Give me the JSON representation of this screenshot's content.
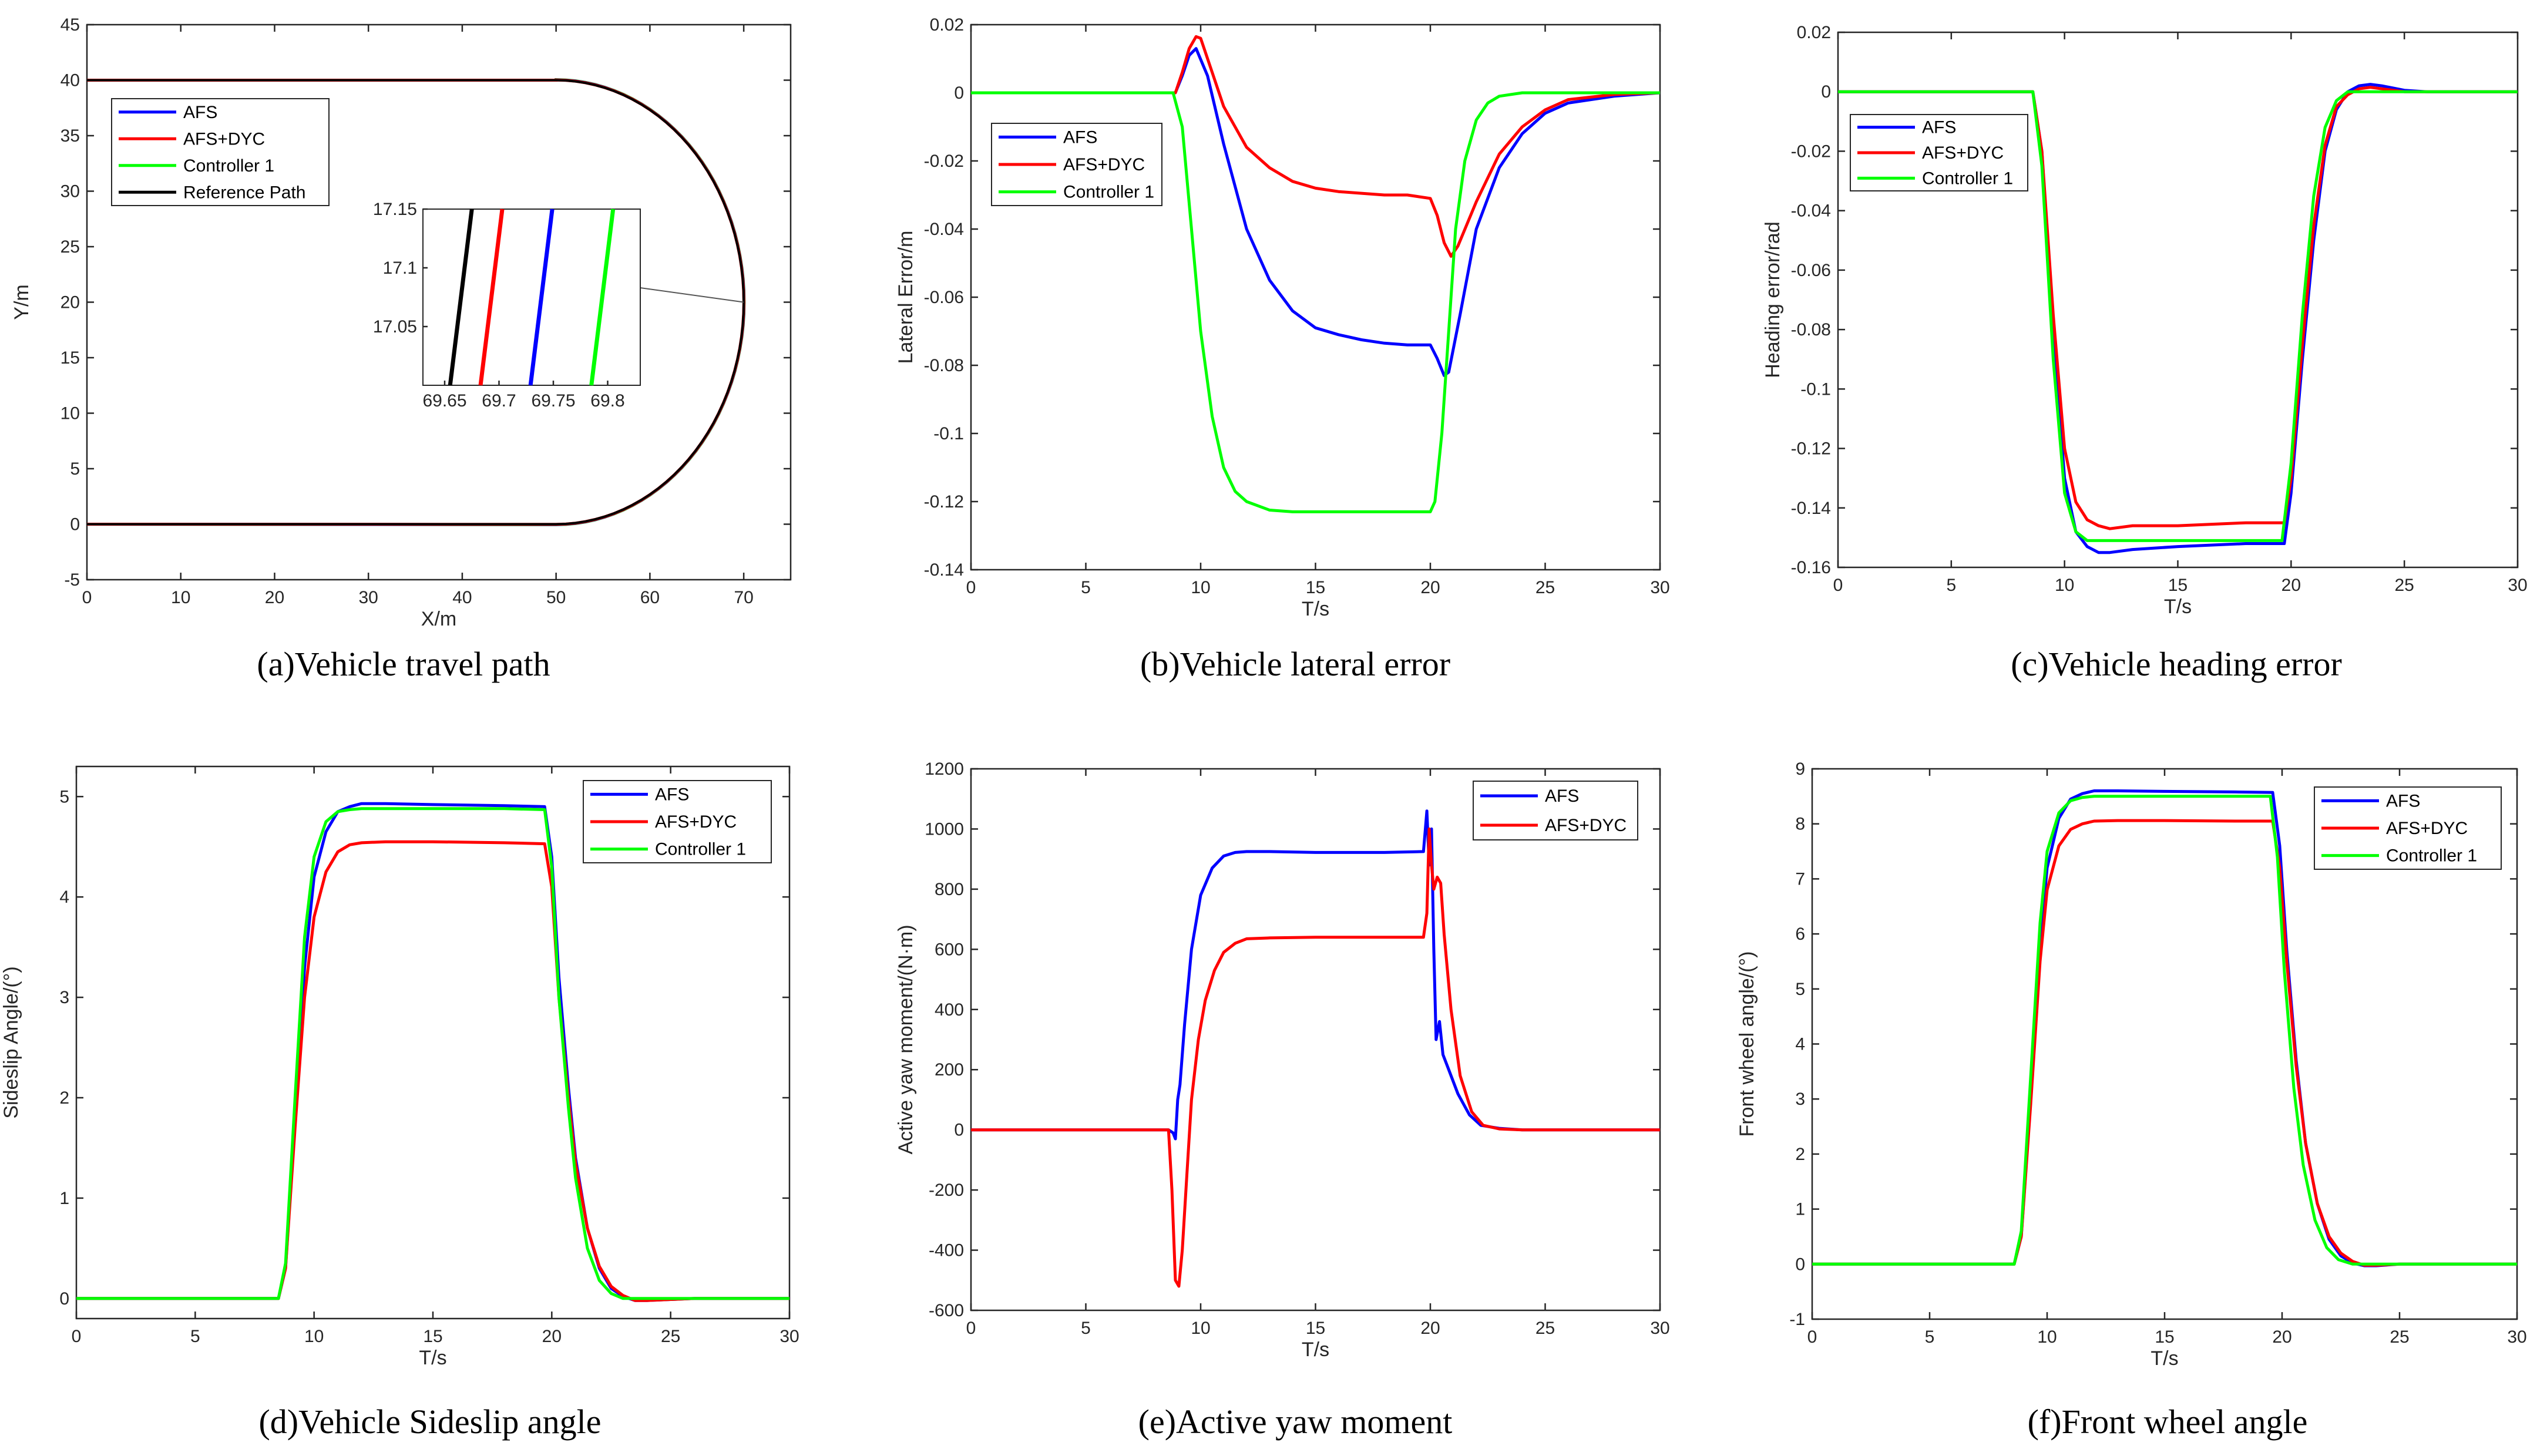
{
  "colors": {
    "AFS": "#0000ff",
    "AFS+DYC": "#ff0000",
    "Controller 1": "#00ff00",
    "Reference Path": "#000000"
  },
  "chart_data": [
    {
      "id": "a",
      "type": "line",
      "caption": "(a)Vehicle travel path",
      "xlabel": "X/m",
      "ylabel": "Y/m",
      "xlim": [
        0,
        75
      ],
      "ylim": [
        -5,
        45
      ],
      "xticks": [
        0,
        10,
        20,
        30,
        40,
        50,
        60,
        70
      ],
      "yticks": [
        -5,
        0,
        5,
        10,
        15,
        20,
        25,
        30,
        35,
        40,
        45
      ],
      "legend_position": "top-left",
      "series": [
        {
          "name": "AFS",
          "shape": "path",
          "offset": 0.03
        },
        {
          "name": "AFS+DYC",
          "shape": "path",
          "offset": 0.015
        },
        {
          "name": "Controller 1",
          "shape": "path",
          "offset": 0.05
        },
        {
          "name": "Reference Path",
          "shape": "path",
          "offset": 0
        }
      ],
      "inset": {
        "xlim": [
          69.63,
          69.83
        ],
        "ylim": [
          17.0,
          17.15
        ],
        "xticks": [
          69.65,
          69.7,
          69.75,
          69.8
        ],
        "yticks": [
          17.05,
          17.1,
          17.15
        ],
        "lines": [
          {
            "name": "Reference Path",
            "x": [
              69.655,
              69.675
            ]
          },
          {
            "name": "AFS+DYC",
            "x": [
              69.683,
              69.703
            ]
          },
          {
            "name": "AFS",
            "x": [
              69.729,
              69.749
            ]
          },
          {
            "name": "Controller 1",
            "x": [
              69.785,
              69.805
            ]
          }
        ]
      }
    },
    {
      "id": "b",
      "type": "line",
      "caption": "(b)Vehicle lateral error",
      "xlabel": "T/s",
      "ylabel": "Lateral Error/m",
      "xlim": [
        0,
        30
      ],
      "ylim": [
        -0.14,
        0.02
      ],
      "xticks": [
        0,
        5,
        10,
        15,
        20,
        25,
        30
      ],
      "yticks": [
        -0.14,
        -0.12,
        -0.1,
        -0.08,
        -0.06,
        -0.04,
        -0.02,
        0,
        0.02
      ],
      "legend_position": "top-left",
      "series": [
        {
          "name": "AFS",
          "x": [
            0,
            8.9,
            9.2,
            9.5,
            9.8,
            10.3,
            11,
            12,
            13,
            14,
            15,
            16,
            17,
            18,
            19,
            20,
            20.3,
            20.6,
            20.8,
            21.3,
            22,
            23,
            24,
            25,
            26,
            28,
            30
          ],
          "y": [
            0,
            0,
            0.005,
            0.011,
            0.013,
            0.005,
            -0.015,
            -0.04,
            -0.055,
            -0.064,
            -0.069,
            -0.071,
            -0.0725,
            -0.0735,
            -0.074,
            -0.074,
            -0.078,
            -0.083,
            -0.082,
            -0.065,
            -0.04,
            -0.022,
            -0.012,
            -0.006,
            -0.003,
            -0.001,
            0
          ]
        },
        {
          "name": "AFS+DYC",
          "x": [
            0,
            8.9,
            9.2,
            9.5,
            9.8,
            10,
            10.5,
            11,
            12,
            13,
            14,
            15,
            16,
            17,
            18,
            19,
            20,
            20.3,
            20.6,
            20.9,
            21.2,
            22,
            23,
            24,
            25,
            26,
            28,
            30
          ],
          "y": [
            0,
            0,
            0.006,
            0.013,
            0.0165,
            0.016,
            0.006,
            -0.004,
            -0.016,
            -0.022,
            -0.026,
            -0.028,
            -0.029,
            -0.0295,
            -0.03,
            -0.03,
            -0.031,
            -0.036,
            -0.044,
            -0.048,
            -0.045,
            -0.032,
            -0.018,
            -0.01,
            -0.005,
            -0.002,
            -0.0005,
            0
          ]
        },
        {
          "name": "Controller 1",
          "x": [
            0,
            8.8,
            9.2,
            9.6,
            10,
            10.5,
            11,
            11.5,
            12,
            13,
            14,
            16,
            18,
            19,
            20,
            20.2,
            20.5,
            20.8,
            21.1,
            21.5,
            22,
            22.5,
            23,
            24,
            26,
            30
          ],
          "y": [
            0,
            0,
            -0.01,
            -0.04,
            -0.07,
            -0.095,
            -0.11,
            -0.117,
            -0.12,
            -0.1225,
            -0.123,
            -0.123,
            -0.123,
            -0.123,
            -0.123,
            -0.12,
            -0.1,
            -0.07,
            -0.04,
            -0.02,
            -0.008,
            -0.003,
            -0.001,
            0,
            0,
            0
          ]
        }
      ]
    },
    {
      "id": "c",
      "type": "line",
      "caption": "(c)Vehicle heading error",
      "xlabel": "T/s",
      "ylabel": "Heading error/rad",
      "xlim": [
        0,
        30
      ],
      "ylim": [
        -0.16,
        0.02
      ],
      "xticks": [
        0,
        5,
        10,
        15,
        20,
        25,
        30
      ],
      "yticks": [
        -0.16,
        -0.14,
        -0.12,
        -0.1,
        -0.08,
        -0.06,
        -0.04,
        -0.02,
        0,
        0.02
      ],
      "legend_position": "top-left",
      "series": [
        {
          "name": "AFS",
          "x": [
            0,
            8.6,
            9,
            9.5,
            10,
            10.5,
            11,
            11.5,
            12,
            13,
            15,
            18,
            19.7,
            20,
            20.5,
            21,
            21.5,
            22,
            22.5,
            23,
            23.5,
            24,
            25,
            26,
            30
          ],
          "y": [
            0,
            0,
            -0.02,
            -0.08,
            -0.13,
            -0.148,
            -0.153,
            -0.155,
            -0.155,
            -0.154,
            -0.153,
            -0.152,
            -0.152,
            -0.135,
            -0.09,
            -0.05,
            -0.02,
            -0.006,
            0.0,
            0.002,
            0.0025,
            0.002,
            0.0005,
            0,
            0
          ]
        },
        {
          "name": "AFS+DYC",
          "x": [
            0,
            8.6,
            9,
            9.5,
            10,
            10.5,
            11,
            11.5,
            12,
            13,
            15,
            18,
            19.7,
            20,
            20.5,
            21,
            21.5,
            22,
            22.5,
            23,
            23.5,
            24,
            25,
            30
          ],
          "y": [
            0,
            0,
            -0.02,
            -0.075,
            -0.12,
            -0.138,
            -0.144,
            -0.146,
            -0.147,
            -0.146,
            -0.146,
            -0.145,
            -0.145,
            -0.13,
            -0.085,
            -0.045,
            -0.018,
            -0.005,
            -0.001,
            0.001,
            0.0015,
            0.001,
            0,
            0
          ]
        },
        {
          "name": "Controller 1",
          "x": [
            0,
            8.6,
            9,
            9.5,
            10,
            10.5,
            11,
            11.5,
            12,
            15,
            18,
            19.6,
            20,
            20.5,
            21,
            21.5,
            22,
            22.5,
            23,
            24,
            30
          ],
          "y": [
            0,
            0,
            -0.025,
            -0.09,
            -0.135,
            -0.148,
            -0.151,
            -0.151,
            -0.151,
            -0.151,
            -0.151,
            -0.151,
            -0.125,
            -0.075,
            -0.035,
            -0.012,
            -0.003,
            0,
            0,
            0,
            0
          ]
        }
      ]
    },
    {
      "id": "d",
      "type": "line",
      "caption": "(d)Vehicle Sideslip angle",
      "xlabel": "T/s",
      "ylabel": "Sideslip Angle/(°)",
      "xlim": [
        0,
        30
      ],
      "ylim": [
        -0.2,
        5.3
      ],
      "xticks": [
        0,
        5,
        10,
        15,
        20,
        25,
        30
      ],
      "yticks": [
        0,
        1,
        2,
        3,
        4,
        5
      ],
      "legend_position": "top-right",
      "series": [
        {
          "name": "AFS",
          "x": [
            0,
            8.5,
            8.8,
            9.2,
            9.6,
            10,
            10.5,
            11,
            11.5,
            12,
            13,
            15,
            18,
            19.7,
            20,
            20.3,
            20.7,
            21,
            21.5,
            22,
            22.5,
            23,
            23.5,
            24,
            25,
            26,
            30
          ],
          "y": [
            0,
            0,
            0.3,
            1.8,
            3.3,
            4.2,
            4.65,
            4.85,
            4.9,
            4.93,
            4.93,
            4.92,
            4.91,
            4.9,
            4.4,
            3.2,
            2.1,
            1.4,
            0.7,
            0.3,
            0.1,
            0.02,
            -0.02,
            -0.02,
            -0.01,
            0,
            0
          ]
        },
        {
          "name": "AFS+DYC",
          "x": [
            0,
            8.5,
            8.8,
            9.2,
            9.6,
            10,
            10.5,
            11,
            11.5,
            12,
            13,
            15,
            18,
            19.7,
            20,
            20.3,
            20.7,
            21,
            21.5,
            22,
            22.5,
            23,
            23.5,
            24,
            25,
            26,
            30
          ],
          "y": [
            0,
            0,
            0.3,
            1.7,
            3.0,
            3.8,
            4.25,
            4.45,
            4.52,
            4.54,
            4.55,
            4.55,
            4.54,
            4.53,
            4.1,
            3.0,
            2.0,
            1.35,
            0.7,
            0.32,
            0.12,
            0.03,
            -0.02,
            -0.02,
            -0.01,
            0,
            0
          ]
        },
        {
          "name": "Controller 1",
          "x": [
            0,
            8.5,
            8.8,
            9.2,
            9.6,
            10,
            10.5,
            11,
            11.5,
            12,
            13,
            15,
            18,
            19.7,
            20,
            20.3,
            20.7,
            21,
            21.5,
            22,
            22.5,
            23,
            24,
            30
          ],
          "y": [
            0,
            0,
            0.35,
            2.0,
            3.6,
            4.4,
            4.75,
            4.85,
            4.87,
            4.88,
            4.88,
            4.88,
            4.88,
            4.87,
            4.3,
            3.0,
            1.9,
            1.2,
            0.5,
            0.18,
            0.05,
            0,
            0,
            0
          ]
        }
      ]
    },
    {
      "id": "e",
      "type": "line",
      "caption": "(e)Active yaw moment",
      "xlabel": "T/s",
      "ylabel": "Active yaw moment/(N·m)",
      "xlim": [
        0,
        30
      ],
      "ylim": [
        -600,
        1200
      ],
      "xticks": [
        0,
        5,
        10,
        15,
        20,
        25,
        30
      ],
      "yticks": [
        -600,
        -400,
        -200,
        0,
        200,
        400,
        600,
        800,
        1000,
        1200
      ],
      "legend_position": "top-right",
      "series": [
        {
          "name": "AFS",
          "x": [
            0,
            8.6,
            8.8,
            8.9,
            9.0,
            9.1,
            9.3,
            9.6,
            10,
            10.5,
            11,
            11.5,
            12,
            13,
            15,
            18,
            19.7,
            19.85,
            19.95,
            20.05,
            20.15,
            20.25,
            20.4,
            20.55,
            20.8,
            21.2,
            21.7,
            22.2,
            23,
            24,
            30
          ],
          "y": [
            0,
            0,
            -10,
            -30,
            100,
            150,
            350,
            600,
            780,
            870,
            910,
            922,
            925,
            925,
            922,
            922,
            925,
            1060,
            880,
            1000,
            600,
            300,
            360,
            250,
            200,
            120,
            50,
            15,
            5,
            0,
            0
          ]
        },
        {
          "name": "AFS+DYC",
          "x": [
            0,
            8.6,
            8.75,
            8.9,
            9.05,
            9.2,
            9.4,
            9.6,
            9.9,
            10.2,
            10.6,
            11,
            11.5,
            12,
            13,
            15,
            18,
            19.7,
            19.85,
            19.95,
            20.05,
            20.15,
            20.3,
            20.45,
            20.6,
            20.9,
            21.3,
            21.8,
            22.3,
            23,
            24,
            30
          ],
          "y": [
            0,
            0,
            -200,
            -500,
            -520,
            -400,
            -150,
            100,
            300,
            430,
            530,
            590,
            620,
            635,
            638,
            640,
            640,
            640,
            720,
            1000,
            880,
            800,
            840,
            820,
            650,
            400,
            180,
            60,
            15,
            3,
            0,
            0
          ]
        }
      ]
    },
    {
      "id": "f",
      "type": "line",
      "caption": "(f)Front wheel angle",
      "xlabel": "T/s",
      "ylabel": "Front wheel angle/(°)",
      "xlim": [
        0,
        30
      ],
      "ylim": [
        -1,
        9
      ],
      "xticks": [
        0,
        5,
        10,
        15,
        20,
        25,
        30
      ],
      "yticks": [
        -1,
        0,
        1,
        2,
        3,
        4,
        5,
        6,
        7,
        8,
        9
      ],
      "legend_position": "top-right",
      "series": [
        {
          "name": "AFS",
          "x": [
            0,
            8.6,
            8.9,
            9.3,
            9.7,
            10,
            10.5,
            11,
            11.5,
            12,
            13,
            15,
            18,
            19.6,
            19.9,
            20.2,
            20.6,
            21,
            21.5,
            22,
            22.5,
            23,
            23.5,
            24,
            25,
            30
          ],
          "y": [
            0,
            0,
            0.5,
            3.0,
            5.8,
            7.2,
            8.1,
            8.45,
            8.55,
            8.6,
            8.6,
            8.59,
            8.58,
            8.57,
            7.6,
            5.7,
            3.7,
            2.2,
            1.1,
            0.45,
            0.15,
            0.02,
            -0.03,
            -0.03,
            0,
            0
          ]
        },
        {
          "name": "AFS+DYC",
          "x": [
            0,
            8.6,
            8.9,
            9.3,
            9.7,
            10,
            10.5,
            11,
            11.5,
            12,
            13,
            15,
            18,
            19.6,
            19.9,
            20.2,
            20.6,
            21,
            21.5,
            22,
            22.5,
            23,
            23.5,
            24,
            25,
            30
          ],
          "y": [
            0,
            0,
            0.5,
            2.9,
            5.5,
            6.8,
            7.6,
            7.9,
            8.0,
            8.05,
            8.06,
            8.06,
            8.05,
            8.05,
            7.2,
            5.5,
            3.6,
            2.2,
            1.1,
            0.5,
            0.2,
            0.05,
            -0.02,
            -0.02,
            0,
            0
          ]
        },
        {
          "name": "Controller 1",
          "x": [
            0,
            8.6,
            8.9,
            9.3,
            9.7,
            10,
            10.5,
            11,
            11.5,
            12,
            13,
            15,
            18,
            19.5,
            19.8,
            20.1,
            20.5,
            20.9,
            21.4,
            21.9,
            22.4,
            23,
            24,
            30
          ],
          "y": [
            0,
            0,
            0.6,
            3.4,
            6.2,
            7.5,
            8.2,
            8.42,
            8.48,
            8.5,
            8.5,
            8.5,
            8.5,
            8.5,
            7.4,
            5.3,
            3.2,
            1.8,
            0.8,
            0.3,
            0.08,
            0,
            0,
            0
          ]
        }
      ]
    }
  ]
}
